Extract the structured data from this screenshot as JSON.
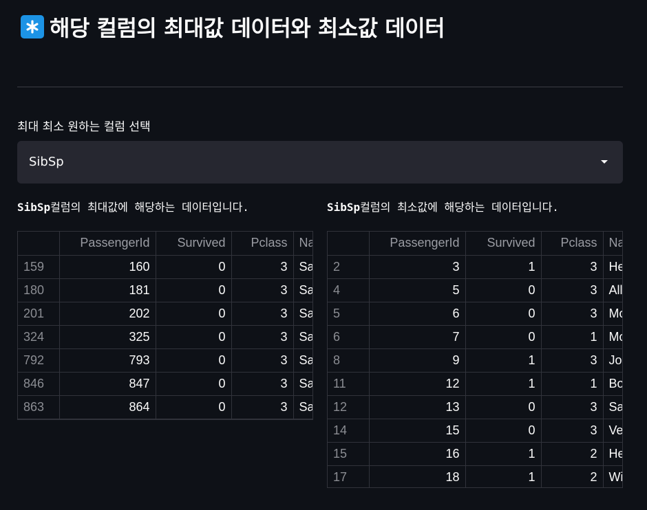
{
  "page": {
    "title": "해당 컬럼의 최대값 데이터와 최소값 데이터",
    "title_icon": "asterisk-icon",
    "accent_color": "#1c93e5"
  },
  "select": {
    "label": "최대 최소 원하는 컬럼 선택",
    "value": "SibSp"
  },
  "max_section": {
    "caption_col": "SibSp",
    "caption_rest": "컬럼의 최대값에 해당하는 데이터입니다.",
    "columns": [
      "",
      "PassengerId",
      "Survived",
      "Pclass",
      "Na"
    ],
    "rows": [
      [
        "159",
        "160",
        "0",
        "3",
        "Sa"
      ],
      [
        "180",
        "181",
        "0",
        "3",
        "Sa"
      ],
      [
        "201",
        "202",
        "0",
        "3",
        "Sa"
      ],
      [
        "324",
        "325",
        "0",
        "3",
        "Sa"
      ],
      [
        "792",
        "793",
        "0",
        "3",
        "Sa"
      ],
      [
        "846",
        "847",
        "0",
        "3",
        "Sa"
      ],
      [
        "863",
        "864",
        "0",
        "3",
        "Sa"
      ]
    ]
  },
  "min_section": {
    "caption_col": "SibSp",
    "caption_rest": "컬럼의 최소값에 해당하는 데이터입니다.",
    "columns": [
      "",
      "PassengerId",
      "Survived",
      "Pclass",
      "Na"
    ],
    "rows": [
      [
        "2",
        "3",
        "1",
        "3",
        "He"
      ],
      [
        "4",
        "5",
        "0",
        "3",
        "All"
      ],
      [
        "5",
        "6",
        "0",
        "3",
        "Mo"
      ],
      [
        "6",
        "7",
        "0",
        "1",
        "Mo"
      ],
      [
        "8",
        "9",
        "1",
        "3",
        "Jo"
      ],
      [
        "11",
        "12",
        "1",
        "1",
        "Bo"
      ],
      [
        "12",
        "13",
        "0",
        "3",
        "Sa"
      ],
      [
        "14",
        "15",
        "0",
        "3",
        "Ve"
      ],
      [
        "15",
        "16",
        "1",
        "2",
        "He"
      ],
      [
        "17",
        "18",
        "1",
        "2",
        "Wi"
      ]
    ]
  }
}
